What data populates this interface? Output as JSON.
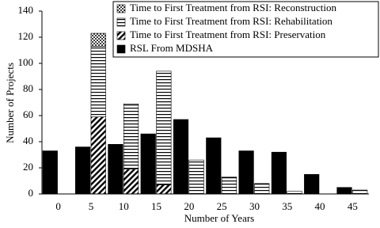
{
  "chart_data": {
    "type": "bar",
    "xlabel": "Number of Years",
    "ylabel": "Number of Projects",
    "categories": [
      "0",
      "5",
      "10",
      "15",
      "20",
      "25",
      "30",
      "35",
      "40",
      "45"
    ],
    "series": [
      {
        "name": "Time to First Treatment from RSI: Reconstruction",
        "color": "#000000",
        "pattern": "dots",
        "stacked": true,
        "values": [
          0,
          10,
          0,
          0,
          0,
          0,
          0,
          0,
          0,
          0
        ]
      },
      {
        "name": "Time to First Treatment from RSI: Rehabilitation",
        "color": "#000000",
        "pattern": "horizontal",
        "stacked": true,
        "values": [
          0,
          54,
          50,
          87,
          26,
          13,
          8,
          2,
          0,
          3
        ]
      },
      {
        "name": "Time to First Treatment from RSI: Preservation",
        "color": "#000000",
        "pattern": "diagonal",
        "stacked": true,
        "values": [
          0,
          59,
          19,
          7,
          0,
          0,
          0,
          0,
          0,
          0
        ]
      },
      {
        "name": "RSL From MDSHA",
        "color": "#000000",
        "pattern": "solid",
        "stacked": false,
        "values": [
          33,
          36,
          38,
          46,
          57,
          43,
          33,
          32,
          15,
          5
        ]
      }
    ],
    "ylim": [
      0,
      140
    ],
    "yticks": [
      0,
      20,
      40,
      60,
      80,
      100,
      120,
      140
    ],
    "grid": false,
    "legend": "top-right"
  }
}
